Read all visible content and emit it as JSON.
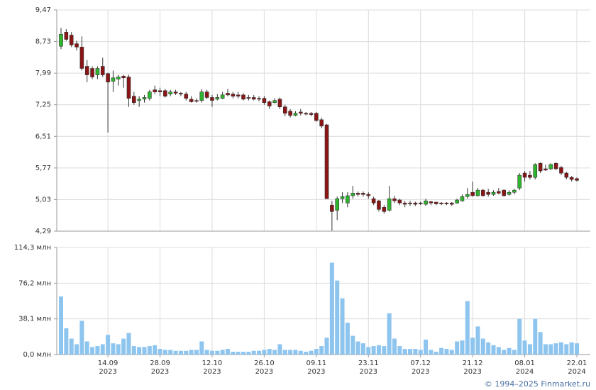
{
  "chart_data": [
    {
      "type": "candlestick",
      "up_color": "#2db52d",
      "down_color": "#8b1414",
      "edge_color": "#333333",
      "grid": true,
      "ylim": [
        4.29,
        9.47
      ],
      "yticks": [
        {
          "value": 4.29,
          "label": "4,29"
        },
        {
          "value": 5.03,
          "label": "5,03"
        },
        {
          "value": 5.77,
          "label": "5,77"
        },
        {
          "value": 6.51,
          "label": "6,51"
        },
        {
          "value": 7.25,
          "label": "7,25"
        },
        {
          "value": 7.99,
          "label": "7,99"
        },
        {
          "value": 8.73,
          "label": "8,73"
        },
        {
          "value": 9.47,
          "label": "9,47"
        }
      ],
      "open": [
        8.62,
        8.95,
        8.88,
        8.68,
        8.6,
        8.15,
        8.1,
        7.95,
        8.15,
        7.98,
        7.8,
        7.85,
        7.92,
        7.9,
        7.45,
        7.35,
        7.38,
        7.4,
        7.6,
        7.58,
        7.58,
        7.5,
        7.55,
        7.52,
        7.5,
        7.38,
        7.35,
        7.35,
        7.55,
        7.42,
        7.38,
        7.4,
        7.52,
        7.5,
        7.48,
        7.48,
        7.42,
        7.42,
        7.4,
        7.4,
        7.32,
        7.3,
        7.38,
        7.2,
        7.1,
        7.0,
        7.08,
        7.05,
        7.05,
        7.05,
        6.9,
        6.78,
        4.9,
        4.78,
        5.05,
        4.95,
        5.12,
        5.18,
        5.18,
        5.15,
        5.05,
        5.0,
        4.85,
        4.78,
        5.05,
        5.02,
        4.95,
        4.95,
        4.95,
        4.95,
        4.92,
        4.98,
        4.97,
        4.95,
        4.95,
        4.95,
        4.95,
        5.0,
        5.1,
        5.2,
        5.12,
        5.25,
        5.2,
        5.15,
        5.22,
        5.25,
        5.15,
        5.2,
        5.3,
        5.65,
        5.6,
        5.55,
        5.88,
        5.75,
        5.75,
        5.88,
        5.78,
        5.65,
        5.55,
        5.52
      ],
      "high": [
        9.05,
        9.02,
        8.95,
        8.75,
        8.85,
        8.3,
        8.15,
        8.15,
        8.35,
        8.0,
        8.05,
        7.95,
        7.95,
        7.95,
        7.55,
        7.45,
        7.48,
        7.6,
        7.7,
        7.65,
        7.62,
        7.6,
        7.6,
        7.55,
        7.55,
        7.45,
        7.4,
        7.62,
        7.6,
        7.48,
        7.5,
        7.55,
        7.62,
        7.55,
        7.55,
        7.52,
        7.48,
        7.48,
        7.45,
        7.45,
        7.35,
        7.4,
        7.42,
        7.25,
        7.15,
        7.1,
        7.15,
        7.08,
        7.08,
        7.08,
        6.95,
        6.8,
        5.0,
        5.1,
        5.2,
        5.2,
        5.35,
        5.22,
        5.22,
        5.2,
        5.1,
        5.02,
        4.9,
        5.35,
        5.12,
        5.05,
        5.0,
        5.0,
        4.98,
        4.98,
        5.05,
        5.0,
        4.98,
        4.97,
        4.97,
        4.97,
        5.05,
        5.15,
        5.3,
        5.45,
        5.3,
        5.28,
        5.28,
        5.25,
        5.3,
        5.27,
        5.25,
        5.28,
        5.65,
        5.7,
        5.7,
        5.88,
        5.9,
        5.85,
        5.88,
        5.9,
        5.82,
        5.68,
        5.58,
        5.55
      ],
      "low": [
        8.55,
        8.75,
        8.6,
        8.52,
        8.05,
        7.78,
        7.85,
        7.85,
        7.9,
        6.6,
        7.55,
        7.7,
        7.65,
        7.2,
        7.25,
        7.2,
        7.3,
        7.35,
        7.5,
        7.45,
        7.42,
        7.45,
        7.48,
        7.45,
        7.35,
        7.3,
        7.3,
        7.3,
        7.38,
        7.2,
        7.35,
        7.38,
        7.45,
        7.4,
        7.4,
        7.35,
        7.35,
        7.35,
        7.33,
        7.25,
        7.15,
        7.28,
        7.15,
        6.98,
        6.95,
        6.98,
        7.0,
        7.0,
        6.98,
        6.85,
        6.7,
        5.05,
        4.3,
        4.55,
        4.95,
        4.85,
        5.05,
        5.1,
        5.1,
        5.05,
        4.9,
        4.75,
        4.7,
        4.75,
        4.95,
        4.9,
        4.85,
        4.88,
        4.88,
        4.9,
        4.88,
        4.9,
        4.9,
        4.9,
        4.9,
        4.88,
        4.93,
        4.98,
        5.05,
        5.1,
        5.1,
        5.1,
        5.1,
        5.12,
        5.15,
        5.1,
        5.12,
        5.15,
        5.25,
        5.45,
        5.5,
        5.5,
        5.65,
        5.7,
        5.72,
        5.72,
        5.6,
        5.5,
        5.45,
        5.45
      ],
      "close": [
        8.9,
        8.78,
        8.65,
        8.6,
        8.1,
        7.95,
        7.9,
        8.1,
        7.95,
        7.78,
        7.88,
        7.9,
        7.88,
        7.4,
        7.3,
        7.38,
        7.42,
        7.55,
        7.55,
        7.55,
        7.45,
        7.55,
        7.52,
        7.5,
        7.4,
        7.32,
        7.33,
        7.55,
        7.42,
        7.35,
        7.42,
        7.48,
        7.48,
        7.45,
        7.45,
        7.38,
        7.4,
        7.38,
        7.38,
        7.3,
        7.22,
        7.35,
        7.2,
        7.05,
        7.0,
        7.05,
        7.05,
        7.03,
        7.02,
        6.88,
        6.75,
        5.05,
        4.75,
        5.05,
        5.1,
        5.12,
        5.18,
        5.15,
        5.15,
        5.12,
        4.95,
        4.8,
        4.75,
        5.05,
        5.0,
        4.95,
        4.92,
        4.93,
        4.92,
        4.93,
        5.0,
        4.95,
        4.93,
        4.93,
        4.93,
        4.92,
        5.02,
        5.1,
        5.15,
        5.12,
        5.25,
        5.12,
        5.15,
        5.2,
        5.18,
        5.12,
        5.2,
        5.25,
        5.6,
        5.55,
        5.55,
        5.85,
        5.7,
        5.72,
        5.85,
        5.75,
        5.65,
        5.55,
        5.5,
        5.48
      ]
    },
    {
      "type": "bar",
      "color": "#8ec5ef",
      "grid": true,
      "ylim": [
        0,
        114.3
      ],
      "yticks": [
        {
          "value": 0,
          "label": "0,0 млн"
        },
        {
          "value": 38.1,
          "label": "38,1 млн"
        },
        {
          "value": 76.2,
          "label": "76,2 млн"
        },
        {
          "value": 114.3,
          "label": "114,3 млн"
        }
      ],
      "categories": [
        null,
        null,
        null,
        null,
        null,
        null,
        null,
        null,
        null,
        "14.09\n2023",
        null,
        null,
        null,
        null,
        null,
        null,
        null,
        null,
        null,
        "28.09\n2023",
        null,
        null,
        null,
        null,
        null,
        null,
        null,
        null,
        null,
        "12.10\n2023",
        null,
        null,
        null,
        null,
        null,
        null,
        null,
        null,
        null,
        "26.10\n2023",
        null,
        null,
        null,
        null,
        null,
        null,
        null,
        null,
        null,
        "09.11\n2023",
        null,
        null,
        null,
        null,
        null,
        null,
        null,
        null,
        null,
        "23.11\n2023",
        null,
        null,
        null,
        null,
        null,
        null,
        null,
        null,
        null,
        "07.12\n2023",
        null,
        null,
        null,
        null,
        null,
        null,
        null,
        null,
        null,
        "21.12\n2023",
        null,
        null,
        null,
        null,
        null,
        null,
        null,
        null,
        null,
        "08.01\n2024",
        null,
        null,
        null,
        null,
        null,
        null,
        null,
        null,
        null,
        "22.01\n2024"
      ],
      "values": [
        62,
        28,
        17,
        11,
        36,
        14,
        8,
        9,
        11,
        21,
        12,
        11,
        17,
        23,
        9,
        8,
        8,
        9,
        10,
        6,
        5,
        5,
        4,
        4,
        4,
        5,
        5,
        14,
        5,
        4,
        4,
        5,
        6,
        3,
        3,
        3,
        3,
        4,
        4,
        5,
        6,
        5,
        11,
        5,
        5,
        5,
        4,
        3,
        4,
        6,
        9,
        18,
        98,
        79,
        60,
        34,
        20,
        14,
        12,
        8,
        9,
        10,
        9,
        44,
        17,
        9,
        6,
        6,
        6,
        5,
        16,
        5,
        3,
        7,
        6,
        5,
        14,
        15,
        57,
        18,
        30,
        17,
        13,
        10,
        8,
        5,
        7,
        5,
        38,
        15,
        11,
        38,
        24,
        11,
        11,
        12,
        13,
        11,
        13,
        12
      ]
    }
  ],
  "footer": "© 1994–2025 Finmarket.ru"
}
